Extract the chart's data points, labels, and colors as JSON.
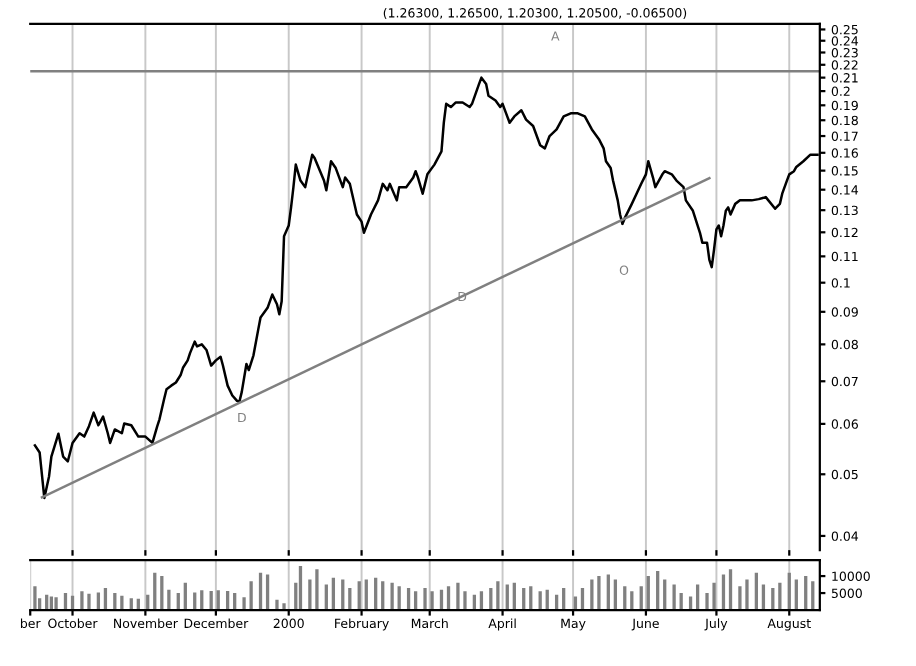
{
  "chart_data": [
    {
      "type": "line",
      "title": "(1.26300, 1.26500, 1.20300, 1.20500, -0.06500)",
      "log": "y",
      "grid": "x",
      "tick_labels": "y",
      "xlim": [
        "1999-09-13",
        "2000-08-14"
      ],
      "ylim": [
        0.038,
        0.255
      ],
      "xticks": [
        {
          "value": "1999-10-01",
          "label": null
        },
        {
          "value": "1999-11-01",
          "label": null
        },
        {
          "value": "1999-12-01",
          "label": null
        },
        {
          "value": "2000-01-01",
          "label": null
        },
        {
          "value": "2000-02-01",
          "label": null
        },
        {
          "value": "2000-03-01",
          "label": null
        },
        {
          "value": "2000-04-01",
          "label": null
        },
        {
          "value": "2000-05-01",
          "label": null
        },
        {
          "value": "2000-06-01",
          "label": null
        },
        {
          "value": "2000-07-01",
          "label": null
        },
        {
          "value": "2000-08-01",
          "label": null
        }
      ],
      "yticks": [
        0.25,
        0.24,
        0.23,
        0.22,
        0.21,
        0.2,
        0.19,
        0.18,
        0.17,
        0.16,
        0.15,
        0.14,
        0.13,
        0.12,
        0.11,
        0.1,
        0.09,
        0.08,
        0.07,
        0.06,
        0.05,
        0.04
      ],
      "ref_lines": [
        {
          "axis": "y",
          "value": 0.215,
          "color": "#808080",
          "line_style": "solid"
        }
      ],
      "annotations": [
        "A",
        "D",
        "O",
        "D"
      ],
      "series": [
        {
          "color": "#000000",
          "x": [
            "1999-09-15",
            "1999-09-17",
            "1999-09-19",
            "1999-09-21",
            "1999-09-22",
            "1999-09-25",
            "1999-09-27",
            "1999-09-29",
            "1999-10-01",
            "1999-10-04",
            "1999-10-06",
            "1999-10-08",
            "1999-10-10",
            "1999-10-12",
            "1999-10-14",
            "1999-10-16",
            "1999-10-17",
            "1999-10-19",
            "1999-10-22",
            "1999-10-23",
            "1999-10-26",
            "1999-10-29",
            "1999-11-01",
            "1999-11-04",
            "1999-11-06",
            "1999-11-07",
            "1999-11-09",
            "1999-11-10",
            "1999-11-12",
            "1999-11-14",
            "1999-11-16",
            "1999-11-17",
            "1999-11-19",
            "1999-11-20",
            "1999-11-22",
            "1999-11-23",
            "1999-11-25",
            "1999-11-27",
            "1999-11-29",
            "1999-12-01",
            "1999-12-03",
            "1999-12-04",
            "1999-12-06",
            "1999-12-08",
            "1999-12-10",
            "1999-12-11",
            "1999-12-12",
            "1999-12-14",
            "1999-12-15",
            "1999-12-17",
            "1999-12-19",
            "1999-12-20",
            "1999-12-23",
            "1999-12-25",
            "1999-12-27",
            "1999-12-28",
            "1999-12-29",
            "1999-12-30",
            "2000-01-01",
            "2000-01-02",
            "2000-01-03",
            "2000-01-04",
            "2000-01-06",
            "2000-01-08",
            "2000-01-11",
            "2000-01-12",
            "2000-01-16",
            "2000-01-17",
            "2000-01-19",
            "2000-01-21",
            "2000-01-24",
            "2000-01-25",
            "2000-01-27",
            "2000-01-30",
            "2000-02-01",
            "2000-02-02",
            "2000-02-05",
            "2000-02-08",
            "2000-02-10",
            "2000-02-12",
            "2000-02-13",
            "2000-02-16",
            "2000-02-17",
            "2000-02-20",
            "2000-02-23",
            "2000-02-24",
            "2000-02-25",
            "2000-02-27",
            "2000-02-28",
            "2000-02-29",
            "2000-03-03",
            "2000-03-06",
            "2000-03-07",
            "2000-03-08",
            "2000-03-10",
            "2000-03-12",
            "2000-03-15",
            "2000-03-18",
            "2000-03-19",
            "2000-03-22",
            "2000-03-23",
            "2000-03-25",
            "2000-03-26",
            "2000-03-29",
            "2000-03-31",
            "2000-04-01",
            "2000-04-04",
            "2000-04-06",
            "2000-04-09",
            "2000-04-11",
            "2000-04-14",
            "2000-04-17",
            "2000-04-19",
            "2000-04-21",
            "2000-04-24",
            "2000-04-27",
            "2000-04-30",
            "2000-05-03",
            "2000-05-06",
            "2000-05-09",
            "2000-05-12",
            "2000-05-14",
            "2000-05-15",
            "2000-05-17",
            "2000-05-18",
            "2000-05-20",
            "2000-05-21",
            "2000-05-22",
            "2000-05-23",
            "2000-05-26",
            "2000-05-30",
            "2000-06-01",
            "2000-06-02",
            "2000-06-04",
            "2000-06-05",
            "2000-06-08",
            "2000-06-09",
            "2000-06-12",
            "2000-06-14",
            "2000-06-17",
            "2000-06-18",
            "2000-06-21",
            "2000-06-24",
            "2000-06-25",
            "2000-06-27",
            "2000-06-28",
            "2000-06-29",
            "2000-06-30",
            "2000-07-01",
            "2000-07-02",
            "2000-07-03",
            "2000-07-04",
            "2000-07-05",
            "2000-07-06",
            "2000-07-07",
            "2000-07-09",
            "2000-07-11",
            "2000-07-16",
            "2000-07-19",
            "2000-07-22",
            "2000-07-26",
            "2000-07-28",
            "2000-07-29",
            "2000-07-31",
            "2000-08-01",
            "2000-08-03",
            "2000-08-04",
            "2000-08-07",
            "2000-08-10",
            "2000-08-13"
          ],
          "values": [
            0.0555,
            0.0541,
            0.0459,
            0.0496,
            0.0533,
            0.0579,
            0.0533,
            0.0524,
            0.056,
            0.058,
            0.0573,
            0.0595,
            0.0625,
            0.0597,
            0.0616,
            0.058,
            0.056,
            0.0588,
            0.058,
            0.0601,
            0.0597,
            0.0573,
            0.0573,
            0.056,
            0.0594,
            0.061,
            0.0657,
            0.068,
            0.0689,
            0.0697,
            0.0716,
            0.0735,
            0.0755,
            0.0775,
            0.0808,
            0.0794,
            0.08,
            0.0784,
            0.0741,
            0.0755,
            0.0765,
            0.0741,
            0.0689,
            0.0665,
            0.0652,
            0.065,
            0.0673,
            0.0745,
            0.0729,
            0.0769,
            0.0843,
            0.0882,
            0.0913,
            0.0958,
            0.0925,
            0.0892,
            0.0935,
            0.1183,
            0.123,
            0.1313,
            0.1413,
            0.1533,
            0.1447,
            0.1413,
            0.1589,
            0.157,
            0.1447,
            0.1397,
            0.1552,
            0.1514,
            0.1413,
            0.1463,
            0.143,
            0.128,
            0.1247,
            0.1198,
            0.128,
            0.1347,
            0.143,
            0.1397,
            0.143,
            0.1347,
            0.1413,
            0.1413,
            0.1463,
            0.1497,
            0.1463,
            0.138,
            0.143,
            0.148,
            0.1533,
            0.1608,
            0.1784,
            0.191,
            0.1888,
            0.1919,
            0.1919,
            0.1888,
            0.191,
            0.2053,
            0.21,
            0.2053,
            0.1967,
            0.1933,
            0.1888,
            0.191,
            0.1784,
            0.1825,
            0.1866,
            0.1804,
            0.1763,
            0.1644,
            0.1626,
            0.17,
            0.1741,
            0.1825,
            0.1846,
            0.1846,
            0.1825,
            0.1741,
            0.1681,
            0.1626,
            0.1552,
            0.1514,
            0.1447,
            0.1347,
            0.128,
            0.1237,
            0.1263,
            0.133,
            0.143,
            0.148,
            0.1552,
            0.1463,
            0.1413,
            0.148,
            0.1497,
            0.148,
            0.1447,
            0.1413,
            0.1347,
            0.1297,
            0.1198,
            0.1156,
            0.1156,
            0.1086,
            0.1058,
            0.1128,
            0.1213,
            0.123,
            0.1183,
            0.123,
            0.1297,
            0.1313,
            0.128,
            0.133,
            0.1347,
            0.1347,
            0.1353,
            0.1363,
            0.1307,
            0.133,
            0.138,
            0.1447,
            0.148,
            0.1497,
            0.152,
            0.1552,
            0.1589,
            0.1589
          ]
        },
        {
          "type": "line",
          "color": "#808080",
          "x": [
            "1999-09-18",
            "2000-06-28"
          ],
          "values": [
            0.046,
            0.146
          ]
        }
      ]
    },
    {
      "type": "bar",
      "grid": "x",
      "xlim": [
        "1999-09-13",
        "2000-08-14"
      ],
      "ylim": [
        0,
        14700
      ],
      "yticks": [
        10000,
        5000
      ],
      "xticks": [
        {
          "value": "1999-09-13",
          "label": "ber"
        },
        {
          "value": "1999-10-01",
          "label": "October"
        },
        {
          "value": "1999-11-01",
          "label": "November"
        },
        {
          "value": "1999-12-01",
          "label": "December"
        },
        {
          "value": "2000-01-01",
          "label": "2000"
        },
        {
          "value": "2000-02-01",
          "label": "February"
        },
        {
          "value": "2000-03-01",
          "label": "March"
        },
        {
          "value": "2000-04-01",
          "label": "April"
        },
        {
          "value": "2000-05-01",
          "label": "May"
        },
        {
          "value": "2000-06-01",
          "label": "June"
        },
        {
          "value": "2000-07-01",
          "label": "July"
        },
        {
          "value": "2000-08-01",
          "label": "August"
        }
      ],
      "series": [
        {
          "color": "#808080",
          "x": [
            "1999-09-15",
            "1999-09-17",
            "1999-09-20",
            "1999-09-22",
            "1999-09-24",
            "1999-09-28",
            "1999-10-01",
            "1999-10-05",
            "1999-10-08",
            "1999-10-12",
            "1999-10-15",
            "1999-10-19",
            "1999-10-22",
            "1999-10-26",
            "1999-10-29",
            "1999-11-02",
            "1999-11-05",
            "1999-11-08",
            "1999-11-11",
            "1999-11-15",
            "1999-11-18",
            "1999-11-22",
            "1999-11-25",
            "1999-11-29",
            "1999-12-02",
            "1999-12-06",
            "1999-12-09",
            "1999-12-13",
            "1999-12-16",
            "1999-12-20",
            "1999-12-23",
            "1999-12-27",
            "1999-12-30",
            "2000-01-04",
            "2000-01-06",
            "2000-01-10",
            "2000-01-13",
            "2000-01-17",
            "2000-01-20",
            "2000-01-24",
            "2000-01-27",
            "2000-01-31",
            "2000-02-03",
            "2000-02-07",
            "2000-02-10",
            "2000-02-14",
            "2000-02-17",
            "2000-02-21",
            "2000-02-24",
            "2000-02-28",
            "2000-03-02",
            "2000-03-06",
            "2000-03-09",
            "2000-03-13",
            "2000-03-16",
            "2000-03-20",
            "2000-03-23",
            "2000-03-27",
            "2000-03-30",
            "2000-04-03",
            "2000-04-06",
            "2000-04-10",
            "2000-04-13",
            "2000-04-17",
            "2000-04-20",
            "2000-04-24",
            "2000-04-27",
            "2000-05-02",
            "2000-05-05",
            "2000-05-09",
            "2000-05-12",
            "2000-05-16",
            "2000-05-19",
            "2000-05-23",
            "2000-05-26",
            "2000-05-30",
            "2000-06-02",
            "2000-06-06",
            "2000-06-09",
            "2000-06-13",
            "2000-06-16",
            "2000-06-20",
            "2000-06-23",
            "2000-06-27",
            "2000-06-30",
            "2000-07-04",
            "2000-07-07",
            "2000-07-11",
            "2000-07-14",
            "2000-07-18",
            "2000-07-21",
            "2000-07-25",
            "2000-07-28",
            "2000-08-01",
            "2000-08-04",
            "2000-08-08",
            "2000-08-11"
          ],
          "values": [
            7000,
            3500,
            4500,
            4000,
            3800,
            5000,
            4200,
            5500,
            4800,
            5200,
            6500,
            5000,
            4200,
            3500,
            3300,
            4500,
            11000,
            10000,
            6000,
            5000,
            8000,
            5200,
            5800,
            5600,
            5800,
            5600,
            5000,
            3800,
            8500,
            11000,
            10500,
            3000,
            2000,
            8000,
            13000,
            9000,
            12000,
            7500,
            9500,
            9000,
            6500,
            8500,
            9000,
            9500,
            8500,
            8000,
            7000,
            6500,
            5500,
            6500,
            5500,
            6000,
            7000,
            8000,
            5500,
            4500,
            5500,
            6500,
            8500,
            7500,
            8000,
            6500,
            7000,
            5500,
            6000,
            4500,
            6500,
            4000,
            6500,
            9000,
            10000,
            10500,
            9000,
            7000,
            5500,
            7000,
            10000,
            11500,
            9000,
            7500,
            5000,
            4000,
            7500,
            5000,
            8000,
            10500,
            12000,
            7000,
            9000,
            11000,
            7500,
            6500,
            8000,
            11000,
            9000,
            10000,
            8500
          ]
        }
      ]
    }
  ]
}
